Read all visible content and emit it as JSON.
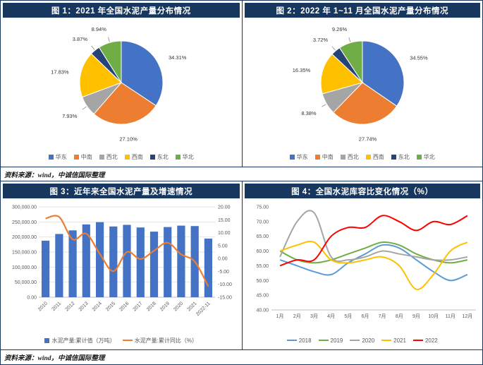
{
  "figures": {
    "fig1": {
      "title": "图 1：2021 年全国水泥产量分布情况"
    },
    "fig2": {
      "title": "图 2：2022 年 1~11 月全国水泥产量分布情况"
    },
    "fig3": {
      "title": "图 3：近年来全国水泥产量及增速情况"
    },
    "fig4": {
      "title": "图 4：全国水泥库容比变化情况（%）"
    }
  },
  "sources": {
    "top": "资料来源：wind，中诚信国际整理",
    "bottom": "资料来源：wind，中诚信国际整理"
  },
  "colors": {
    "title_bar": "#17375E",
    "border": "#17375E"
  },
  "chart_data": [
    {
      "id": "fig1_pie",
      "type": "pie",
      "title": "2021 年全国水泥产量分布情况",
      "categories": [
        "华东",
        "中南",
        "西北",
        "西南",
        "东北",
        "华北"
      ],
      "values": [
        34.31,
        27.1,
        7.93,
        17.83,
        3.87,
        8.94
      ],
      "labels": [
        "34.31%",
        "27.10%",
        "7.93%",
        "17.83%",
        "3.87%",
        "8.94%"
      ],
      "colors": [
        "#4472C4",
        "#ED7D31",
        "#A5A5A5",
        "#FFC000",
        "#264478",
        "#70AD47"
      ],
      "legend_position": "bottom"
    },
    {
      "id": "fig2_pie",
      "type": "pie",
      "title": "2022 年 1~11 月全国水泥产量分布情况",
      "categories": [
        "华东",
        "中南",
        "西北",
        "西南",
        "东北",
        "华北"
      ],
      "values": [
        34.55,
        27.74,
        8.38,
        16.35,
        3.72,
        9.26
      ],
      "labels": [
        "34.55%",
        "27.74%",
        "8.38%",
        "16.35%",
        "3.72%",
        "9.26%"
      ],
      "colors": [
        "#4472C4",
        "#ED7D31",
        "#A5A5A5",
        "#FFC000",
        "#264478",
        "#70AD47"
      ],
      "legend_position": "bottom"
    },
    {
      "id": "fig3_combo",
      "type": "bar",
      "title": "近年来全国水泥产量及增速情况",
      "categories": [
        "2010",
        "2011",
        "2012",
        "2013",
        "2014",
        "2015",
        "2016",
        "2017",
        "2018",
        "2019",
        "2020",
        "2021",
        "2022-11"
      ],
      "series": [
        {
          "name": "水泥产量:累计值（万吨）",
          "chart": "bar",
          "axis": "left",
          "color": "#4472C4",
          "values": [
            187668,
            209926,
            221984,
            241614,
            249207,
            234796,
            240295,
            231625,
            217667,
            233036,
            237691,
            236276,
            194791
          ]
        },
        {
          "name": "水泥产量:累计同比（%）",
          "chart": "line",
          "axis": "right",
          "color": "#ED7D31",
          "values": [
            15.5,
            16.1,
            7.4,
            9.6,
            1.8,
            -4.9,
            2.5,
            -0.2,
            3.0,
            6.1,
            1.6,
            -1.2,
            -10.8
          ]
        }
      ],
      "left_axis": {
        "min": 0,
        "max": 300000,
        "step": 50000,
        "tick_labels": [
          "0.00",
          "50,000.00",
          "100,000.00",
          "150,000.00",
          "200,000.00",
          "250,000.00",
          "300,000.00"
        ]
      },
      "right_axis": {
        "min": -15,
        "max": 20,
        "step": 5,
        "tick_labels": [
          "-15.00",
          "-10.00",
          "-5.00",
          "0.00",
          "5.00",
          "10.00",
          "15.00",
          "20.00"
        ]
      },
      "grid": true,
      "legend_position": "bottom"
    },
    {
      "id": "fig4_lines",
      "type": "line",
      "title": "全国水泥库容比变化情况（%）",
      "categories": [
        "1月",
        "2月",
        "3月",
        "4月",
        "5月",
        "6月",
        "7月",
        "8月",
        "9月",
        "10月",
        "11月",
        "12月"
      ],
      "series": [
        {
          "name": "2018",
          "color": "#5B9BD5",
          "values": [
            57,
            55,
            53,
            52,
            56,
            59,
            62,
            61,
            57,
            53,
            50,
            52
          ]
        },
        {
          "name": "2019",
          "color": "#70AD47",
          "values": [
            60,
            57,
            56,
            57,
            59,
            61,
            63,
            62,
            59,
            57,
            56,
            57
          ]
        },
        {
          "name": "2020",
          "color": "#A5A5A5",
          "values": [
            58,
            70,
            73,
            58,
            57,
            58,
            60,
            59,
            58,
            57,
            57,
            58
          ]
        },
        {
          "name": "2021",
          "color": "#FFC000",
          "values": [
            60,
            62,
            63,
            57,
            56,
            57,
            58,
            55,
            47,
            52,
            60,
            63
          ]
        },
        {
          "name": "2022",
          "color": "#FF0000",
          "values": [
            55,
            57,
            57,
            65,
            68,
            68,
            72,
            70,
            67,
            70,
            69,
            72
          ]
        }
      ],
      "y_axis": {
        "min": 40,
        "max": 75,
        "step": 5,
        "tick_labels": [
          "40.00",
          "45.00",
          "50.00",
          "55.00",
          "60.00",
          "65.00",
          "70.00",
          "75.00"
        ]
      },
      "grid": false,
      "legend_position": "bottom"
    }
  ]
}
